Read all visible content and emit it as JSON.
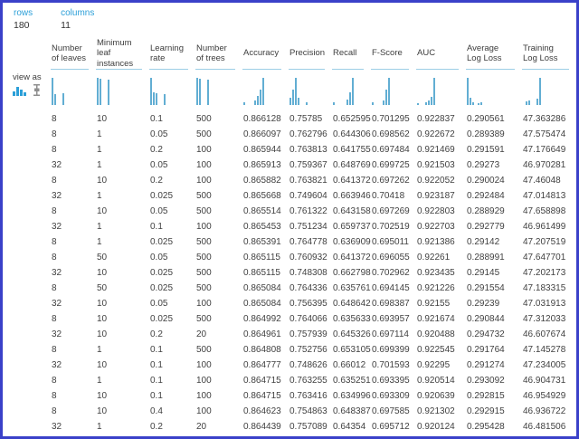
{
  "stats": {
    "rows_label": "rows",
    "rows_value": "180",
    "columns_label": "columns",
    "columns_value": "11"
  },
  "view_as": {
    "label": "view as",
    "options": [
      {
        "name": "histogram",
        "active": true
      },
      {
        "name": "boxplot",
        "active": false
      }
    ]
  },
  "colors": {
    "accent_blue": "#2b9fd8",
    "histogram_bar": "#62aed3",
    "header_underline": "#9ccee6",
    "window_border": "#3a41c9",
    "text": "#3f3f3f"
  },
  "table": {
    "columns": [
      {
        "label": "Number of leaves",
        "histogram": [
          100,
          40,
          0,
          0,
          42,
          0,
          0,
          0
        ]
      },
      {
        "label": "Minimum leaf instances",
        "histogram": [
          100,
          96,
          0,
          0,
          92,
          0,
          0,
          0
        ]
      },
      {
        "label": "Learning rate",
        "histogram": [
          100,
          48,
          44,
          0,
          0,
          40,
          0,
          0
        ]
      },
      {
        "label": "Number of trees",
        "histogram": [
          100,
          95,
          0,
          0,
          92,
          0,
          0,
          0
        ]
      },
      {
        "label": "Accuracy",
        "histogram": [
          10,
          0,
          0,
          0,
          15,
          32,
          55,
          100
        ]
      },
      {
        "label": "Precision",
        "histogram": [
          28,
          55,
          100,
          28,
          0,
          0,
          10,
          0
        ]
      },
      {
        "label": "Recall",
        "histogram": [
          10,
          0,
          0,
          0,
          0,
          20,
          45,
          100
        ]
      },
      {
        "label": "F-Score",
        "histogram": [
          10,
          0,
          0,
          0,
          15,
          55,
          100,
          0
        ]
      },
      {
        "label": "AUC",
        "histogram": [
          8,
          0,
          0,
          10,
          15,
          30,
          100,
          0
        ]
      },
      {
        "label": "Average Log Loss",
        "histogram": [
          100,
          28,
          10,
          0,
          8,
          10,
          0,
          0
        ]
      },
      {
        "label": "Training Log Loss",
        "histogram": [
          0,
          14,
          16,
          0,
          0,
          22,
          100,
          0
        ]
      }
    ],
    "rows": [
      [
        "8",
        "10",
        "0.1",
        "500",
        "0.866128",
        "0.75785",
        "0.652595",
        "0.701295",
        "0.922837",
        "0.290561",
        "47.363286"
      ],
      [
        "8",
        "1",
        "0.05",
        "500",
        "0.866097",
        "0.762796",
        "0.644306",
        "0.698562",
        "0.922672",
        "0.289389",
        "47.575474"
      ],
      [
        "8",
        "1",
        "0.2",
        "100",
        "0.865944",
        "0.763813",
        "0.641755",
        "0.697484",
        "0.921469",
        "0.291591",
        "47.176649"
      ],
      [
        "32",
        "1",
        "0.05",
        "100",
        "0.865913",
        "0.759367",
        "0.648769",
        "0.699725",
        "0.921503",
        "0.29273",
        "46.970281"
      ],
      [
        "8",
        "10",
        "0.2",
        "100",
        "0.865882",
        "0.763821",
        "0.641372",
        "0.697262",
        "0.922052",
        "0.290024",
        "47.46048"
      ],
      [
        "32",
        "1",
        "0.025",
        "500",
        "0.865668",
        "0.749604",
        "0.663946",
        "0.70418",
        "0.923187",
        "0.292484",
        "47.014813"
      ],
      [
        "8",
        "10",
        "0.05",
        "500",
        "0.865514",
        "0.761322",
        "0.643158",
        "0.697269",
        "0.922803",
        "0.288929",
        "47.658898"
      ],
      [
        "32",
        "1",
        "0.1",
        "100",
        "0.865453",
        "0.751234",
        "0.659737",
        "0.702519",
        "0.922703",
        "0.292779",
        "46.961499"
      ],
      [
        "8",
        "1",
        "0.025",
        "500",
        "0.865391",
        "0.764778",
        "0.636909",
        "0.695011",
        "0.921386",
        "0.29142",
        "47.207519"
      ],
      [
        "8",
        "50",
        "0.05",
        "500",
        "0.865115",
        "0.760932",
        "0.641372",
        "0.696055",
        "0.92261",
        "0.288991",
        "47.647701"
      ],
      [
        "32",
        "10",
        "0.025",
        "500",
        "0.865115",
        "0.748308",
        "0.662798",
        "0.702962",
        "0.923435",
        "0.29145",
        "47.202173"
      ],
      [
        "8",
        "50",
        "0.025",
        "500",
        "0.865084",
        "0.764336",
        "0.635761",
        "0.694145",
        "0.921226",
        "0.291554",
        "47.183315"
      ],
      [
        "32",
        "10",
        "0.05",
        "100",
        "0.865084",
        "0.756395",
        "0.648642",
        "0.698387",
        "0.92155",
        "0.29239",
        "47.031913"
      ],
      [
        "8",
        "10",
        "0.025",
        "500",
        "0.864992",
        "0.764066",
        "0.635633",
        "0.693957",
        "0.921674",
        "0.290844",
        "47.312033"
      ],
      [
        "32",
        "10",
        "0.2",
        "20",
        "0.864961",
        "0.757939",
        "0.645326",
        "0.697114",
        "0.920488",
        "0.294732",
        "46.607674"
      ],
      [
        "8",
        "1",
        "0.1",
        "500",
        "0.864808",
        "0.752756",
        "0.653105",
        "0.699399",
        "0.922545",
        "0.291764",
        "47.145278"
      ],
      [
        "32",
        "10",
        "0.1",
        "100",
        "0.864777",
        "0.748626",
        "0.66012",
        "0.701593",
        "0.92295",
        "0.291274",
        "47.234005"
      ],
      [
        "8",
        "1",
        "0.1",
        "100",
        "0.864715",
        "0.763255",
        "0.635251",
        "0.693395",
        "0.920514",
        "0.293092",
        "46.904731"
      ],
      [
        "8",
        "10",
        "0.1",
        "100",
        "0.864715",
        "0.763416",
        "0.634996",
        "0.693309",
        "0.920639",
        "0.292815",
        "46.954929"
      ],
      [
        "8",
        "10",
        "0.4",
        "100",
        "0.864623",
        "0.754863",
        "0.648387",
        "0.697585",
        "0.921302",
        "0.292915",
        "46.936722"
      ],
      [
        "32",
        "1",
        "0.2",
        "20",
        "0.864439",
        "0.757089",
        "0.64354",
        "0.695712",
        "0.920124",
        "0.295428",
        "46.481506"
      ]
    ]
  }
}
